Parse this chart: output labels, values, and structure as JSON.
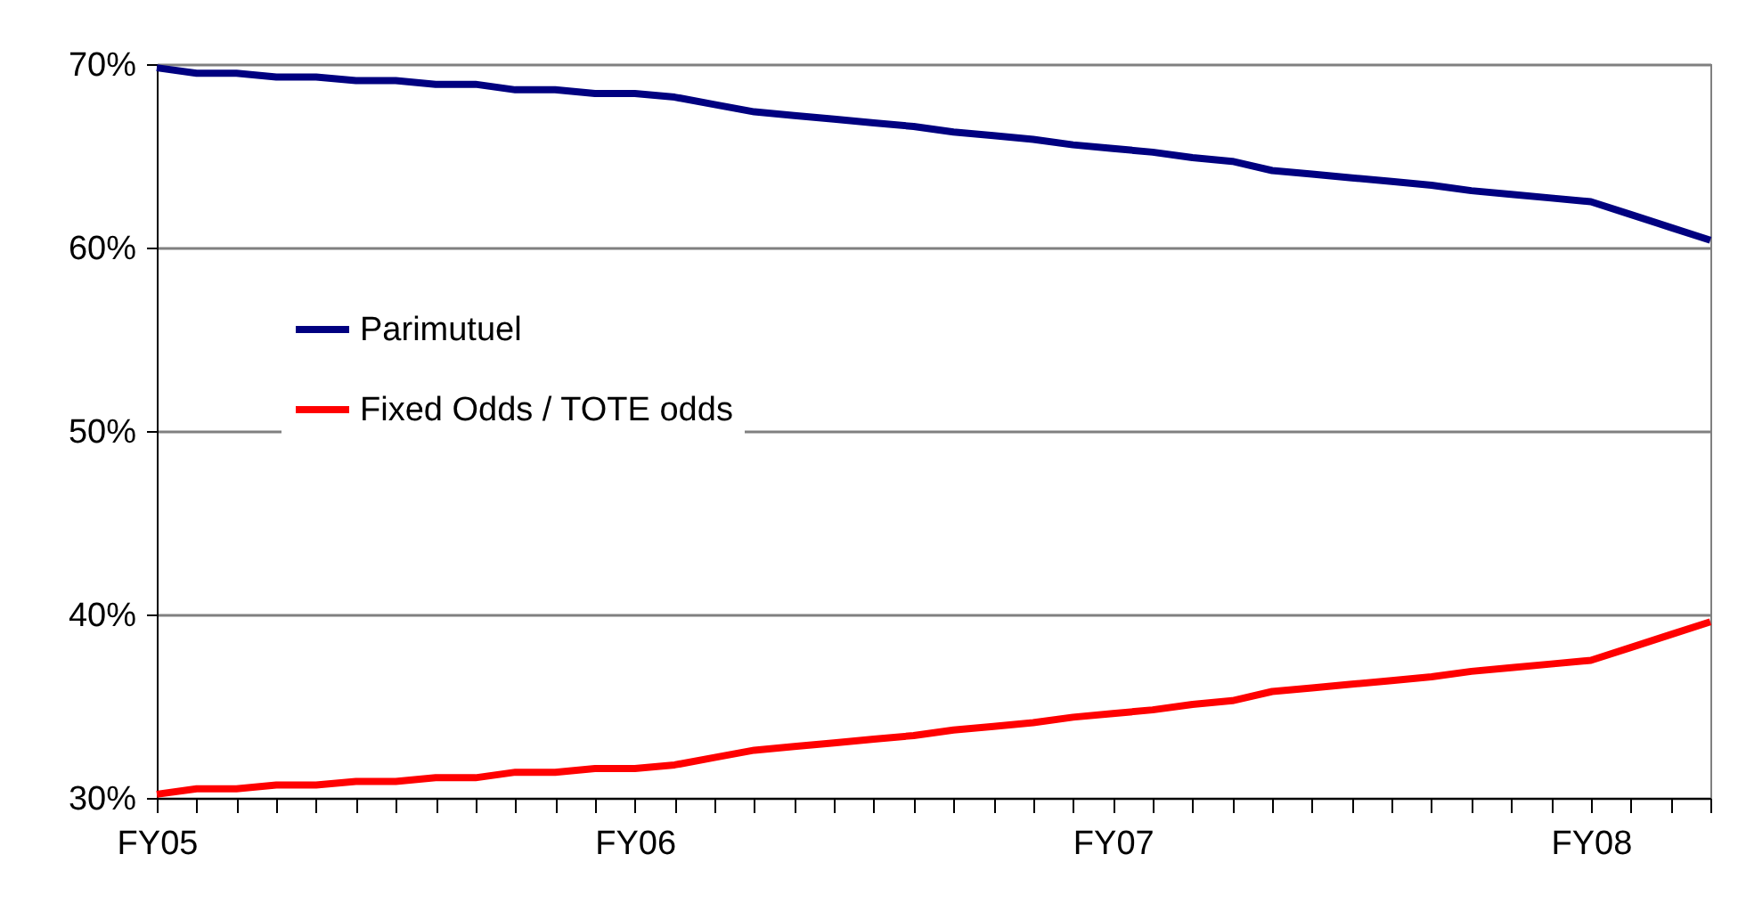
{
  "chart_data": {
    "type": "line",
    "categories": [
      "FY05",
      null,
      null,
      null,
      null,
      null,
      null,
      null,
      null,
      null,
      null,
      null,
      "FY06",
      null,
      null,
      null,
      null,
      null,
      null,
      null,
      null,
      null,
      null,
      null,
      "FY07",
      null,
      null,
      null,
      null,
      null,
      null,
      null,
      null,
      null,
      null,
      null,
      "FY08",
      null,
      null,
      null
    ],
    "series": [
      {
        "name": "Parimutuel",
        "color": "#000080",
        "values": [
          69.8,
          69.5,
          69.5,
          69.3,
          69.3,
          69.1,
          69.1,
          68.9,
          68.9,
          68.6,
          68.6,
          68.4,
          68.4,
          68.2,
          67.8,
          67.4,
          67.2,
          67.0,
          66.8,
          66.6,
          66.3,
          66.1,
          65.9,
          65.6,
          65.4,
          65.2,
          64.9,
          64.7,
          64.2,
          64.0,
          63.8,
          63.6,
          63.4,
          63.1,
          62.9,
          62.7,
          62.5,
          61.8,
          61.1,
          60.4
        ]
      },
      {
        "name": "Fixed Odds / TOTE odds",
        "color": "#ff0000",
        "values": [
          30.2,
          30.5,
          30.5,
          30.7,
          30.7,
          30.9,
          30.9,
          31.1,
          31.1,
          31.4,
          31.4,
          31.6,
          31.6,
          31.8,
          32.2,
          32.6,
          32.8,
          33.0,
          33.2,
          33.4,
          33.7,
          33.9,
          34.1,
          34.4,
          34.6,
          34.8,
          35.1,
          35.3,
          35.8,
          36.0,
          36.2,
          36.4,
          36.6,
          36.9,
          37.1,
          37.3,
          37.5,
          38.2,
          38.9,
          39.6
        ]
      }
    ],
    "ylim": [
      30,
      70
    ],
    "yticks": [
      {
        "value": 30,
        "label": "30%"
      },
      {
        "value": 40,
        "label": "40%"
      },
      {
        "value": 50,
        "label": "50%"
      },
      {
        "value": 60,
        "label": "60%"
      },
      {
        "value": 70,
        "label": "70%"
      }
    ],
    "grid": "y",
    "legend": "top left",
    "marker": "none",
    "line_style": "solid"
  }
}
